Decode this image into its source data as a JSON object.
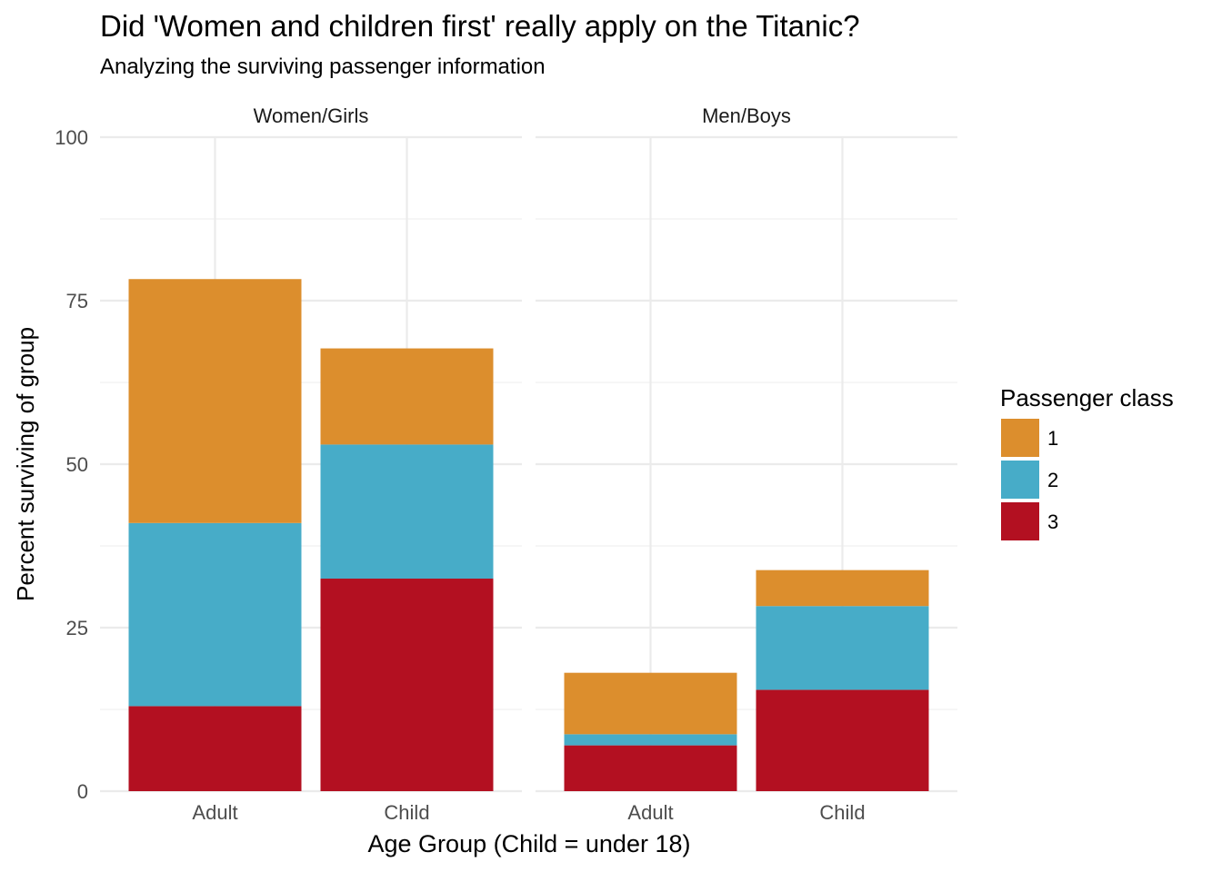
{
  "chart_data": {
    "type": "bar",
    "stacked": true,
    "title": "Did 'Women and children first' really apply on the Titanic?",
    "subtitle": "Analyzing the surviving passenger information",
    "xlabel": "Age Group (Child = under 18)",
    "ylabel": "Percent surviving of group",
    "ylim": [
      0,
      100
    ],
    "yticks": [
      0,
      25,
      50,
      75,
      100
    ],
    "categories": [
      "Adult",
      "Child"
    ],
    "legend": {
      "title": "Passenger class",
      "position": "right",
      "entries": [
        "1",
        "2",
        "3"
      ]
    },
    "colors": {
      "1": "#DC8E2D",
      "2": "#47ACC8",
      "3": "#B31021"
    },
    "grid": true,
    "facets": [
      {
        "label": "Women/Girls",
        "series": [
          {
            "name": "3",
            "values": [
              13,
              32.5
            ]
          },
          {
            "name": "2",
            "values": [
              28,
              20.5
            ]
          },
          {
            "name": "1",
            "values": [
              37.3,
              14.7
            ]
          }
        ]
      },
      {
        "label": "Men/Boys",
        "series": [
          {
            "name": "3",
            "values": [
              7,
              15.5
            ]
          },
          {
            "name": "2",
            "values": [
              1.7,
              12.8
            ]
          },
          {
            "name": "1",
            "values": [
              9.4,
              5.5
            ]
          }
        ]
      }
    ]
  }
}
